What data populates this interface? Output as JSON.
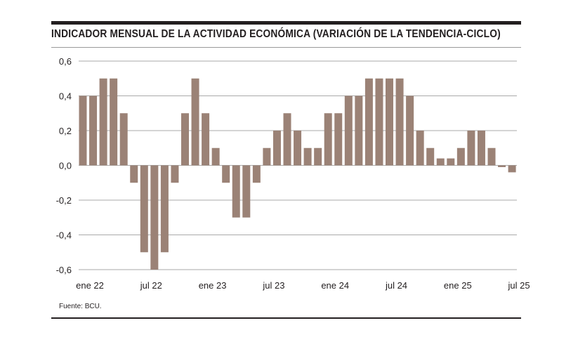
{
  "title": "INDICADOR MENSUAL DE LA ACTIVIDAD ECONÓMICA (VARIACIÓN DE LA TENDENCIA-CICLO)",
  "source": "Fuente: BCU.",
  "colors": {
    "bar": "#9b8276",
    "grid": "#aaaaaa",
    "text": "#231f20"
  },
  "chart_data": {
    "type": "bar",
    "title": "INDICADOR MENSUAL DE LA ACTIVIDAD ECONÓMICA (VARIACIÓN DE LA TENDENCIA-CICLO)",
    "xlabel": "",
    "ylabel": "",
    "ylim": [
      -0.6,
      0.6
    ],
    "grid": true,
    "yticks": [
      "0,6",
      "0,4",
      "0,2",
      "0,0",
      "-0,2",
      "-0,4",
      "-0,6"
    ],
    "ytick_values": [
      0.6,
      0.4,
      0.2,
      0.0,
      -0.2,
      -0.4,
      -0.6
    ],
    "xtick_labels": [
      {
        "label": "ene 22",
        "index": 0
      },
      {
        "label": "jul 22",
        "index": 6
      },
      {
        "label": "ene 23",
        "index": 12
      },
      {
        "label": "jul 23",
        "index": 18
      },
      {
        "label": "ene 24",
        "index": 24
      },
      {
        "label": "jul 24",
        "index": 30
      },
      {
        "label": "ene 25",
        "index": 36
      },
      {
        "label": "jul 25",
        "index": 42
      }
    ],
    "categories": [
      "ene 22",
      "feb 22",
      "mar 22",
      "abr 22",
      "may 22",
      "jun 22",
      "jul 22",
      "ago 22",
      "sep 22",
      "oct 22",
      "nov 22",
      "dic 22",
      "ene 23",
      "feb 23",
      "mar 23",
      "abr 23",
      "may 23",
      "jun 23",
      "jul 23",
      "ago 23",
      "sep 23",
      "oct 23",
      "nov 23",
      "dic 23",
      "ene 24",
      "feb 24",
      "mar 24",
      "abr 24",
      "may 24",
      "jun 24",
      "jul 24",
      "ago 24",
      "sep 24",
      "oct 24",
      "nov 24",
      "dic 24",
      "ene 25",
      "feb 25",
      "mar 25",
      "abr 25",
      "may 25",
      "jun 25",
      "jul 25"
    ],
    "values": [
      0.4,
      0.4,
      0.5,
      0.5,
      0.3,
      -0.1,
      -0.5,
      -0.6,
      -0.5,
      -0.1,
      0.3,
      0.5,
      0.3,
      0.1,
      -0.1,
      -0.3,
      -0.3,
      -0.1,
      0.1,
      0.2,
      0.3,
      0.2,
      0.1,
      0.1,
      0.3,
      0.3,
      0.4,
      0.4,
      0.5,
      0.5,
      0.5,
      0.5,
      0.4,
      0.2,
      0.1,
      0.04,
      0.04,
      0.1,
      0.2,
      0.2,
      0.1,
      -0.01,
      -0.04
    ]
  }
}
